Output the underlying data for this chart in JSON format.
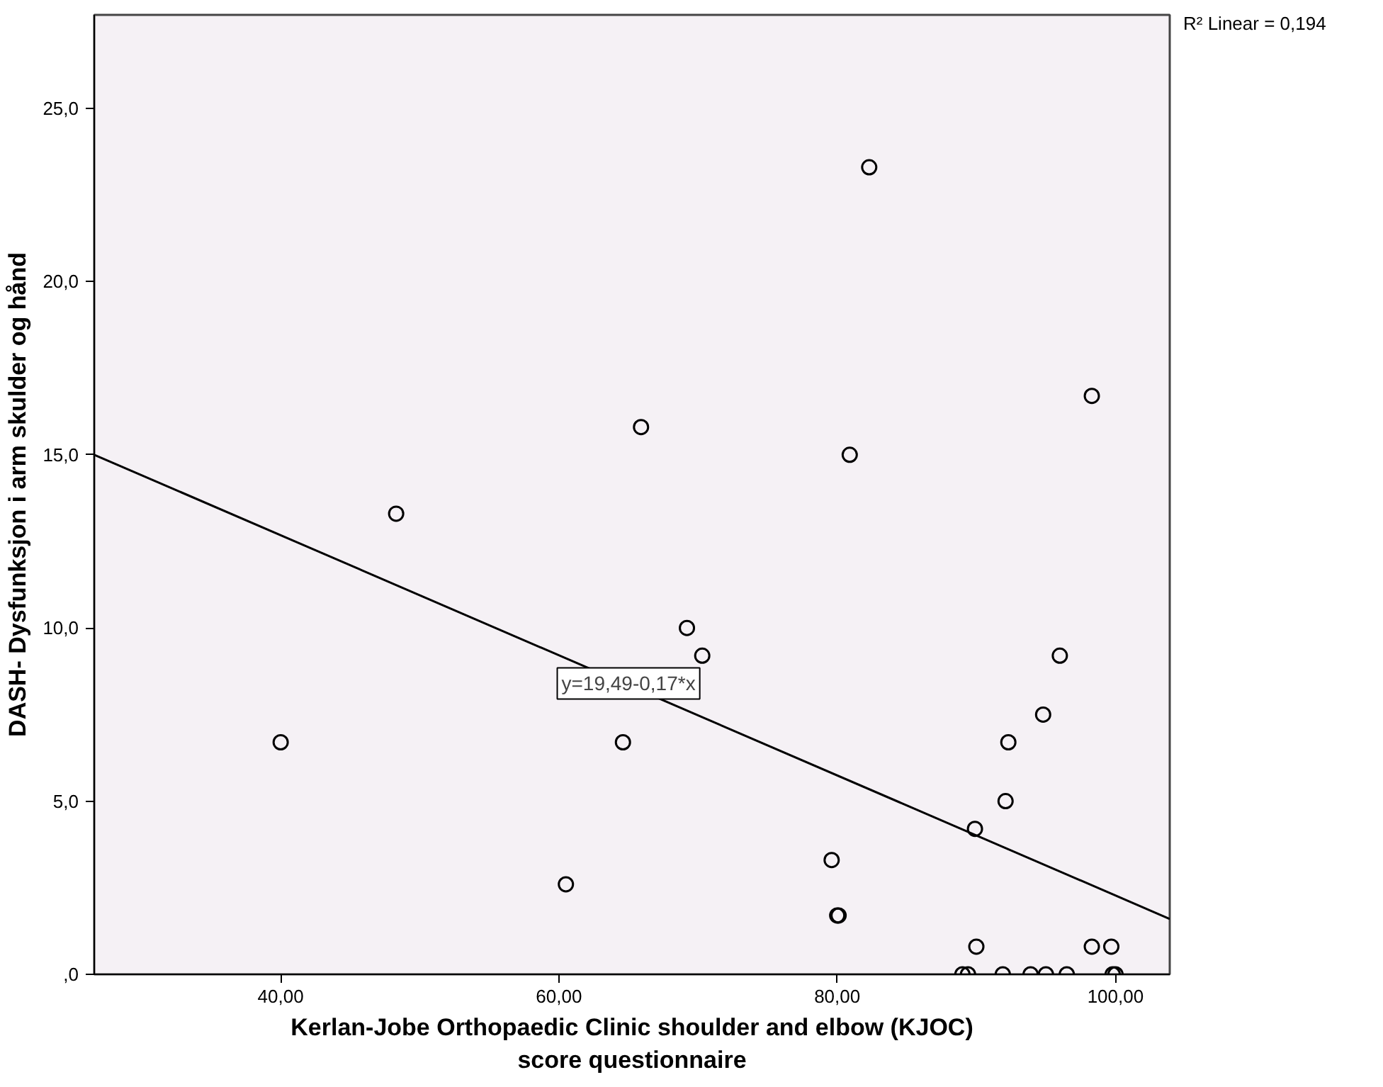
{
  "chart_data": {
    "type": "scatter",
    "xlabel": "Kerlan-Jobe Orthopaedic Clinic shoulder and elbow (KJOC)\nscore questionnaire",
    "ylabel": "DASH- Dysfunksjon i arm skulder og hånd",
    "xlim": [
      26.6,
      103.9
    ],
    "ylim": [
      0,
      27.7
    ],
    "xticks": [
      {
        "value": 40,
        "label": "40,00"
      },
      {
        "value": 60,
        "label": "60,00"
      },
      {
        "value": 80,
        "label": "80,00"
      },
      {
        "value": 100,
        "label": "100,00"
      }
    ],
    "yticks": [
      {
        "value": 0,
        "label": ",0"
      },
      {
        "value": 5,
        "label": "5,0"
      },
      {
        "value": 10,
        "label": "10,0"
      },
      {
        "value": 15,
        "label": "15,0"
      },
      {
        "value": 20,
        "label": "20,0"
      },
      {
        "value": 25,
        "label": "25,0"
      }
    ],
    "grid": false,
    "series": [
      {
        "marker": "circle",
        "color": "#000000",
        "x": [
          40.0,
          48.3,
          60.5,
          64.6,
          65.9,
          69.2,
          70.3,
          82.3,
          80.9,
          98.3,
          96.0,
          94.8,
          92.3,
          92.1,
          89.9,
          79.6,
          80.0,
          80.1,
          90.0,
          98.3,
          99.7,
          89.0,
          89.4,
          91.9,
          93.9,
          95.0,
          96.5,
          99.8,
          100.0
        ],
        "values": [
          6.7,
          13.3,
          2.6,
          6.7,
          15.8,
          10.0,
          9.2,
          23.3,
          15.0,
          16.7,
          9.2,
          7.5,
          6.7,
          5.0,
          4.2,
          3.3,
          1.7,
          1.7,
          0.8,
          0.8,
          0.8,
          0.0,
          0.0,
          0.0,
          0.0,
          0.0,
          0.0,
          0.0,
          0.0
        ]
      },
      {
        "type": "line",
        "color": "#000000",
        "x": [
          26.6,
          103.9
        ],
        "values": [
          15.0,
          1.6
        ]
      }
    ],
    "annotations": [
      {
        "text": "y=19,49-0,17*x",
        "x": 65.0,
        "y": 8.4
      },
      "R² Linear = 0,194"
    ]
  }
}
